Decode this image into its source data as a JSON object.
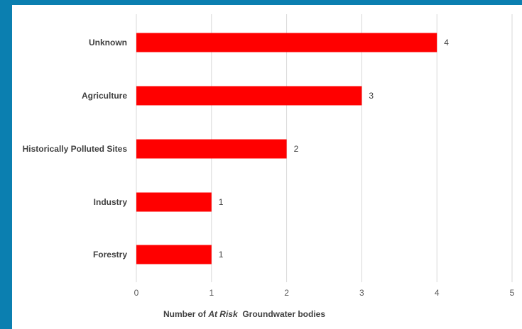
{
  "colors": {
    "background_band": "#0b7fb0",
    "bar": "#ff0000",
    "gridline": "#d9d9d9"
  },
  "chart_data": {
    "type": "bar",
    "orientation": "horizontal",
    "categories": [
      "Unknown",
      "Agriculture",
      "Historically Polluted Sites",
      "Industry",
      "Forestry"
    ],
    "values": [
      4,
      3,
      2,
      1,
      1
    ],
    "xlim": [
      0,
      5
    ],
    "xticks": [
      "0",
      "1",
      "2",
      "3",
      "4",
      "5"
    ],
    "xlabel": {
      "prefix": "Number of ",
      "emphasis": "At Risk",
      "suffix": "  Groundwater bodies"
    },
    "data_labels": true,
    "grid": "vertical"
  }
}
